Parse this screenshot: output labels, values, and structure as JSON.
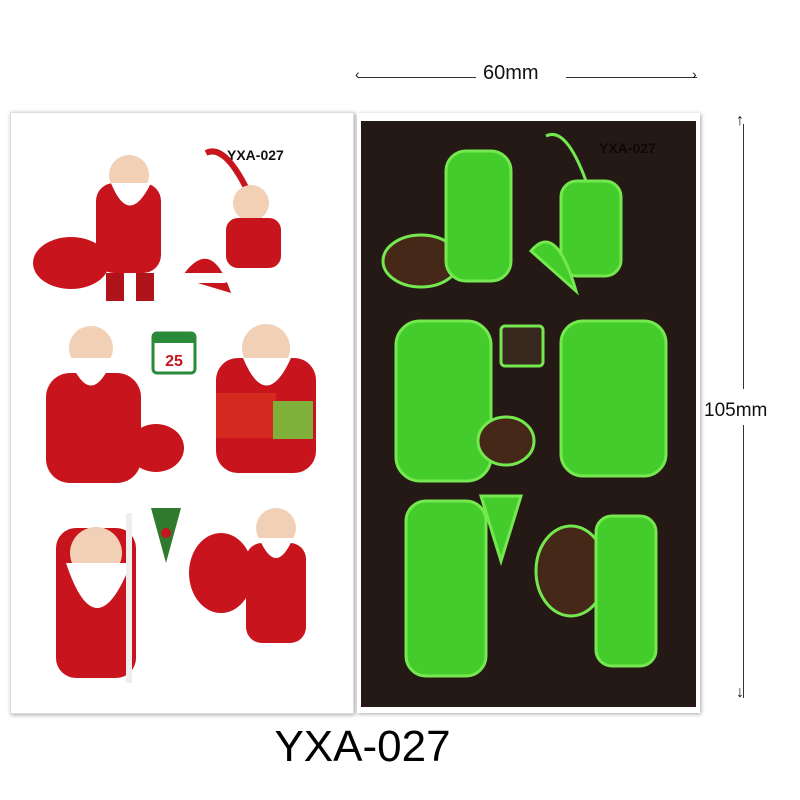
{
  "product_code": "YXA-027",
  "sheet_label": "YXA-027",
  "width_label": "60mm",
  "height_label": "105mm",
  "calendar_number": "25",
  "colors": {
    "sheet_dark": "#241915",
    "glow": "#5dff3a",
    "santa_red": "#c8141c"
  }
}
